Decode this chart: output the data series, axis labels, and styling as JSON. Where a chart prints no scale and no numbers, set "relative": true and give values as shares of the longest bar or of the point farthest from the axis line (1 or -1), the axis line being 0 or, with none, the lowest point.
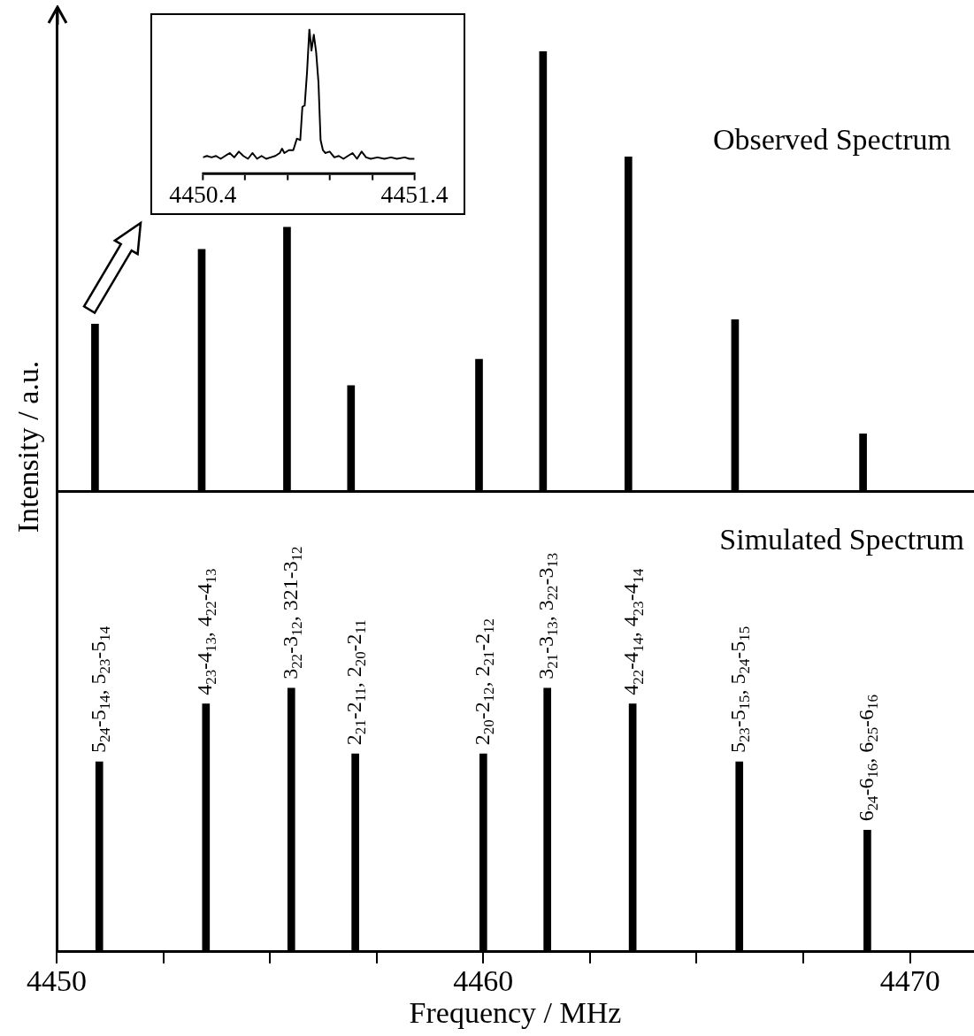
{
  "chart_data": [
    {
      "type": "bar",
      "title": "Observed Spectrum",
      "relative": true,
      "color": "#000000",
      "xlim": [
        4450,
        4471.5
      ],
      "tick_labels": false,
      "x": [
        4450.9,
        4453.4,
        4455.4,
        4456.9,
        4459.9,
        4461.4,
        4463.4,
        4465.9,
        4468.9
      ],
      "values": [
        0.38,
        0.55,
        0.6,
        0.24,
        0.3,
        1,
        0.76,
        0.39,
        0.13
      ]
    },
    {
      "type": "bar",
      "title": "Simulated Spectrum",
      "relative": true,
      "color": "#000000",
      "xlim": [
        4450,
        4471.5
      ],
      "tick_labels": "x",
      "xlabel": "Frequency / MHz",
      "ylabel": "Intensity / a.u.",
      "xticks": [
        4450,
        {
          "value": 4452.5,
          "label": null
        },
        {
          "value": 4455,
          "label": null
        },
        {
          "value": 4457.5,
          "label": null
        },
        4460,
        {
          "value": 4462.5,
          "label": null
        },
        {
          "value": 4465,
          "label": null
        },
        {
          "value": 4467.5,
          "label": null
        },
        4470
      ],
      "x": [
        4451.0,
        4453.5,
        4455.5,
        4457.0,
        4460.0,
        4461.5,
        4463.5,
        4466.0,
        4469.0
      ],
      "values": [
        0.72,
        0.94,
        1,
        0.75,
        0.75,
        1,
        0.94,
        0.72,
        0.46
      ],
      "annotations": [
        {
          "text": "5$_{24}$-5$_{14}$, 5$_{23}$-5$_{14}$",
          "x": 4451.0,
          "y": 0.72
        },
        {
          "text": "4$_{23}$-4$_{13}$, 4$_{22}$-4$_{13}$",
          "x": 4453.5,
          "y": 0.94
        },
        {
          "text": "3$_{22}$-3$_{12}$, 321-3$_{12}$",
          "x": 4455.5,
          "y": 1
        },
        {
          "text": "2$_{21}$-2$_{11}$, 2$_{20}$-2$_{11}$",
          "x": 4457.0,
          "y": 0.75
        },
        {
          "text": "2$_{20}$-2$_{12}$, 2$_{21}$-2$_{12}$",
          "x": 4460.0,
          "y": 0.75
        },
        {
          "text": "3$_{21}$-3$_{13}$, 3$_{22}$-3$_{13}$",
          "x": 4461.5,
          "y": 1
        },
        {
          "text": "4$_{22}$-4$_{14}$, 4$_{23}$-4$_{14}$",
          "x": 4463.5,
          "y": 0.94
        },
        {
          "text": "5$_{23}$-5$_{15}$, 5$_{24}$-5$_{15}$",
          "x": 4466.0,
          "y": 0.72
        },
        {
          "text": "6$_{24}$-6$_{16}$, 6$_{25}$-6$_{16}$",
          "x": 4469.0,
          "y": 0.46
        }
      ]
    },
    {
      "type": "line",
      "relative": true,
      "color": "#000000",
      "marker": "none",
      "tick_labels": "x",
      "xlim": [
        4450.4,
        4451.4
      ],
      "xticks": [
        4450.4,
        {
          "value": 4450.6,
          "label": null
        },
        {
          "value": 4450.8,
          "label": null
        },
        {
          "value": 4451.0,
          "label": null
        },
        {
          "value": 4451.2,
          "label": null
        },
        4451.4
      ],
      "x": [
        4450.4,
        4450.419,
        4450.441,
        4450.462,
        4450.484,
        4450.505,
        4450.527,
        4450.548,
        4450.57,
        4450.591,
        4450.613,
        4450.634,
        4450.656,
        4450.677,
        4450.699,
        4450.72,
        4450.742,
        4450.763,
        4450.774,
        4450.785,
        4450.806,
        4450.827,
        4450.844,
        4450.86,
        4450.87,
        4450.881,
        4450.892,
        4450.903,
        4450.913,
        4450.924,
        4450.935,
        4450.946,
        4450.956,
        4450.967,
        4450.978,
        4450.999,
        4451.021,
        4451.042,
        4451.064,
        4451.085,
        4451.107,
        4451.128,
        4451.15,
        4451.171,
        4451.193,
        4451.225,
        4451.257,
        4451.289,
        4451.316,
        4451.354,
        4451.375,
        4451.4
      ],
      "values": [
        0.11,
        0.12,
        0.11,
        0.12,
        0.1,
        0.12,
        0.14,
        0.11,
        0.15,
        0.12,
        0.1,
        0.14,
        0.1,
        0.12,
        0.1,
        0.11,
        0.12,
        0.14,
        0.17,
        0.14,
        0.16,
        0.16,
        0.24,
        0.23,
        0.46,
        0.47,
        0.7,
        1,
        0.85,
        0.96,
        0.84,
        0.63,
        0.23,
        0.16,
        0.14,
        0.15,
        0.11,
        0.12,
        0.1,
        0.12,
        0.14,
        0.1,
        0.15,
        0.11,
        0.1,
        0.11,
        0.1,
        0.11,
        0.1,
        0.11,
        0.1,
        0.1
      ]
    }
  ]
}
